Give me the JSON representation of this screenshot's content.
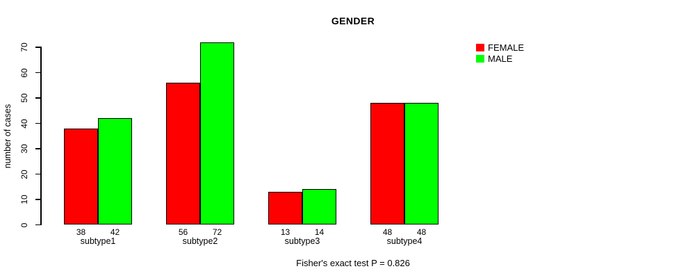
{
  "title": "GENDER",
  "footer": "Fisher's exact test P = 0.826",
  "colors": {
    "female": "#FF0000",
    "male": "#00FF00",
    "axis": "#000000",
    "background": "#FFFFFF"
  },
  "legend": {
    "items": [
      {
        "label": "FEMALE",
        "color": "#FF0000"
      },
      {
        "label": "MALE",
        "color": "#00FF00"
      }
    ]
  },
  "chart_data": {
    "type": "bar",
    "title": "GENDER",
    "xlabel": "",
    "ylabel": "number of cases",
    "categories": [
      "subtype1",
      "subtype2",
      "subtype3",
      "subtype4"
    ],
    "series": [
      {
        "name": "FEMALE",
        "color": "#FF0000",
        "values": [
          38,
          56,
          13,
          48
        ]
      },
      {
        "name": "MALE",
        "color": "#00FF00",
        "values": [
          42,
          72,
          14,
          48
        ]
      }
    ],
    "ylim": [
      0,
      70
    ],
    "yticks": [
      0,
      10,
      20,
      30,
      40,
      50,
      60,
      70
    ],
    "grid": false,
    "legend_position": "top-right",
    "bar_value_labels": true,
    "annotation": "Fisher's exact test P = 0.826"
  }
}
